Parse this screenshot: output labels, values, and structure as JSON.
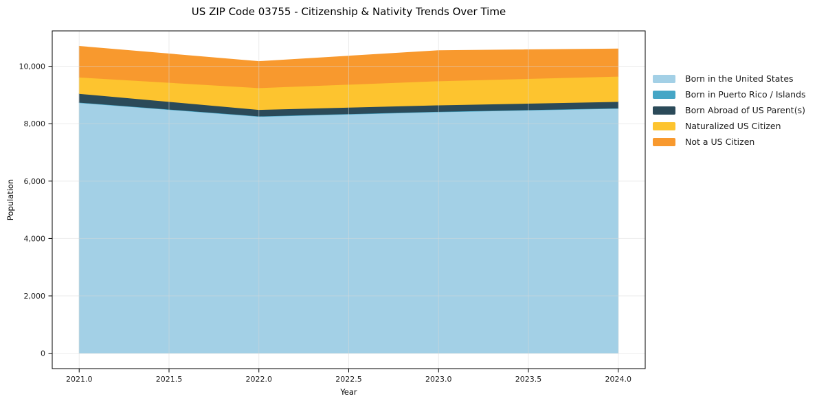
{
  "title": "US ZIP Code 03755 - Citizenship & Nativity Trends Over Time",
  "chart_data": {
    "type": "area",
    "stacked": true,
    "title": "US ZIP Code 03755 - Citizenship & Nativity Trends Over Time",
    "xlabel": "Year",
    "ylabel": "Population",
    "x": [
      2021,
      2022,
      2023,
      2024
    ],
    "series": [
      {
        "name": "Born in the United States",
        "color": "#a3d0e6",
        "values": [
          8730,
          8250,
          8410,
          8530
        ]
      },
      {
        "name": "Born in Puerto Rico / Islands",
        "color": "#45a6c6",
        "values": [
          15,
          15,
          15,
          15
        ]
      },
      {
        "name": "Born Abroad of US Parent(s)",
        "color": "#2b4a59",
        "values": [
          305,
          225,
          225,
          225
        ]
      },
      {
        "name": "Naturalized US Citizen",
        "color": "#fdc42f",
        "values": [
          570,
          760,
          840,
          880
        ]
      },
      {
        "name": "Not a US Citizen",
        "color": "#f8992e",
        "values": [
          1080,
          920,
          1060,
          960
        ]
      }
    ],
    "stack_totals": [
      10700,
      10170,
      10550,
      10610
    ],
    "xlim": [
      2020.85,
      2024.15
    ],
    "ylim": [
      -535,
      11235
    ],
    "xticks": [
      2021.0,
      2021.5,
      2022.0,
      2022.5,
      2023.0,
      2023.5,
      2024.0
    ],
    "xtick_labels": [
      "2021.0",
      "2021.5",
      "2022.0",
      "2022.5",
      "2023.0",
      "2023.5",
      "2024.0"
    ],
    "yticks": [
      0,
      2000,
      4000,
      6000,
      8000,
      10000
    ],
    "ytick_labels": [
      "0",
      "2,000",
      "4,000",
      "6,000",
      "8,000",
      "10,000"
    ],
    "grid": true,
    "legend_position": "right",
    "colors": {
      "grid": "#d8d8d8",
      "spine": "#000000",
      "background": "#ffffff"
    }
  }
}
